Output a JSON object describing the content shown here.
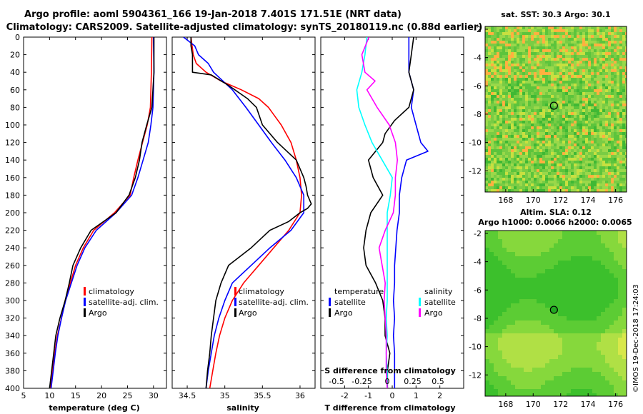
{
  "header": {
    "line1": "Argo profile: aoml 5904361_166 19-Jan-2018 7.401S 171.51E (NRT data)",
    "line2": "Climatology: CARS2009. Satellite-adjusted climatology: synTS_20180119.nc (0.88d earlier)"
  },
  "colors": {
    "climatology": "#ff0000",
    "satellite": "#0000ff",
    "argo": "#000000",
    "sal_diff": "#ff00ff",
    "sal_sat_diff": "#00ffff",
    "sst_bg": "#7ad84a",
    "sla_bg": "#33cc33"
  },
  "depth_ticks": [
    "0",
    "20",
    "40",
    "60",
    "80",
    "100",
    "120",
    "140",
    "160",
    "180",
    "200",
    "220",
    "240",
    "260",
    "280",
    "300",
    "320",
    "340",
    "360",
    "380",
    "400"
  ],
  "chart_data": [
    {
      "type": "line",
      "name": "temperature",
      "xlabel": "temperature (deg C)",
      "xlim": [
        5,
        32.5
      ],
      "xticks": [
        5,
        10,
        15,
        20,
        25,
        30
      ],
      "xtick_labels": [
        "5",
        "10",
        "15",
        "20",
        "25",
        "30"
      ],
      "ylim": [
        0,
        400
      ],
      "legend": [
        "climatology",
        "satellite-adj. clim.",
        "Argo"
      ],
      "series": [
        {
          "name": "climatology",
          "color": "#ff0000",
          "depth": [
            0,
            40,
            80,
            100,
            120,
            140,
            160,
            180,
            200,
            220,
            240,
            260,
            280,
            300,
            320,
            340,
            360,
            380,
            400
          ],
          "values": [
            29.7,
            29.6,
            29.4,
            28.8,
            27.9,
            27.0,
            26.2,
            25.5,
            22.5,
            18.5,
            16.5,
            15.0,
            14.0,
            13.0,
            12.3,
            11.5,
            11.0,
            10.6,
            10.2
          ]
        },
        {
          "name": "satellite-adj. clim.",
          "color": "#0000ff",
          "depth": [
            0,
            40,
            80,
            100,
            120,
            140,
            160,
            180,
            200,
            220,
            240,
            260,
            280,
            300,
            320,
            340,
            360,
            380,
            400
          ],
          "values": [
            30.0,
            30.1,
            29.9,
            29.5,
            29.0,
            28.0,
            27.0,
            25.8,
            22.8,
            19.0,
            16.8,
            15.3,
            14.2,
            13.1,
            12.3,
            11.6,
            11.1,
            10.7,
            10.3
          ]
        },
        {
          "name": "Argo",
          "color": "#000000",
          "depth": [
            0,
            40,
            80,
            100,
            120,
            140,
            160,
            180,
            200,
            220,
            240,
            260,
            280,
            300,
            320,
            340,
            360,
            380,
            400
          ],
          "values": [
            30.1,
            30.1,
            29.7,
            28.7,
            27.8,
            27.3,
            26.5,
            25.3,
            22.8,
            18.0,
            16.0,
            14.5,
            13.8,
            13.0,
            12.0,
            11.2,
            10.8,
            10.4,
            10.0
          ]
        }
      ]
    },
    {
      "type": "line",
      "name": "salinity",
      "xlabel": "salinity",
      "xlim": [
        34.3,
        36.2
      ],
      "xticks": [
        34.5,
        35,
        35.5,
        36
      ],
      "xtick_labels": [
        "34.5",
        "35",
        "35.5",
        "36"
      ],
      "ylim": [
        0,
        400
      ],
      "legend": [
        "climatology",
        "satellite-adj. clim.",
        "Argo"
      ],
      "series": [
        {
          "name": "climatology",
          "color": "#ff0000",
          "depth": [
            0,
            20,
            30,
            40,
            50,
            60,
            70,
            80,
            100,
            120,
            140,
            160,
            180,
            200,
            220,
            240,
            260,
            280,
            300,
            320,
            340,
            360,
            380,
            400
          ],
          "values": [
            34.55,
            34.58,
            34.62,
            34.75,
            34.95,
            35.22,
            35.45,
            35.58,
            35.75,
            35.88,
            35.95,
            36.0,
            36.02,
            36.0,
            35.85,
            35.65,
            35.45,
            35.25,
            35.1,
            35.0,
            34.93,
            34.88,
            34.84,
            34.8
          ]
        },
        {
          "name": "satellite-adj. clim.",
          "color": "#0000ff",
          "depth": [
            0,
            10,
            20,
            30,
            40,
            60,
            80,
            100,
            120,
            140,
            160,
            180,
            200,
            220,
            240,
            260,
            280,
            300,
            320,
            340,
            360,
            380,
            400
          ],
          "values": [
            34.45,
            34.6,
            34.65,
            34.78,
            34.85,
            35.1,
            35.28,
            35.45,
            35.62,
            35.8,
            35.95,
            36.05,
            36.05,
            35.88,
            35.6,
            35.35,
            35.1,
            35.0,
            34.92,
            34.86,
            34.82,
            34.78,
            34.75
          ]
        },
        {
          "name": "Argo",
          "color": "#000000",
          "depth": [
            0,
            10,
            20,
            30,
            40,
            43,
            55,
            70,
            80,
            100,
            120,
            140,
            160,
            170,
            180,
            190,
            195,
            200,
            210,
            220,
            240,
            260,
            280,
            300,
            320,
            340,
            360,
            380,
            400
          ],
          "values": [
            34.55,
            34.55,
            34.57,
            34.57,
            34.57,
            34.82,
            35.05,
            35.3,
            35.42,
            35.5,
            35.7,
            35.95,
            36.05,
            36.08,
            36.1,
            36.15,
            36.1,
            36.0,
            35.85,
            35.6,
            35.35,
            35.05,
            34.95,
            34.88,
            34.85,
            34.82,
            34.8,
            34.77,
            34.75
          ]
        }
      ]
    },
    {
      "type": "line",
      "name": "differences",
      "xlabel": "T difference from climatology",
      "xlabel_top": "S difference from climatology",
      "xlim": [
        -3,
        3
      ],
      "xticks": [
        -2,
        -1,
        0,
        1,
        2
      ],
      "xtick_labels": [
        "-2",
        "-1",
        "0",
        "1",
        "2"
      ],
      "sal_xticks": [
        -0.5,
        -0.25,
        0,
        0.25,
        0.5
      ],
      "sal_xtick_labels": [
        "-0.5",
        "-0.25",
        "0",
        "0.25",
        "0.5"
      ],
      "ylim": [
        0,
        400
      ],
      "legend_temperature_title": "temperature",
      "legend_salinity_title": "salinity",
      "legend": [
        "satellite",
        "Argo",
        "satellite",
        "Argo"
      ],
      "series": [
        {
          "name": "temperature satellite",
          "color": "#0000ff",
          "depth": [
            0,
            40,
            60,
            80,
            100,
            120,
            130,
            140,
            160,
            180,
            200,
            220,
            240,
            260,
            280,
            300,
            320,
            340,
            360,
            380,
            400
          ],
          "values": [
            0.7,
            0.7,
            0.9,
            0.8,
            1.0,
            1.2,
            1.5,
            0.6,
            0.4,
            0.3,
            0.3,
            0.2,
            0.15,
            0.1,
            0.1,
            0.05,
            0.1,
            0.05,
            0.1,
            0.1,
            0.1
          ]
        },
        {
          "name": "temperature Argo",
          "color": "#000000",
          "depth": [
            0,
            20,
            40,
            60,
            80,
            95,
            110,
            120,
            140,
            160,
            180,
            200,
            220,
            240,
            260,
            280,
            300,
            320,
            340,
            360,
            380,
            400
          ],
          "values": [
            0.9,
            0.8,
            0.7,
            0.9,
            0.7,
            0.1,
            -0.3,
            -0.4,
            -1.0,
            -0.8,
            -0.4,
            -0.9,
            -1.1,
            -1.2,
            -1.1,
            -0.7,
            -0.4,
            -0.3,
            -0.3,
            -0.1,
            -0.2,
            -0.2
          ]
        },
        {
          "name": "salinity satellite",
          "color": "#00ffff",
          "depth": [
            0,
            20,
            40,
            60,
            80,
            100,
            120,
            140,
            160,
            180,
            200,
            220,
            240,
            260,
            280,
            300,
            320,
            340,
            360,
            380,
            400
          ],
          "values": [
            -0.2,
            -0.22,
            -0.25,
            -0.3,
            -0.28,
            -0.22,
            -0.15,
            -0.05,
            0.05,
            0.03,
            0.0,
            0.0,
            0.0,
            0.0,
            0.0,
            0.0,
            -0.01,
            0.0,
            -0.01,
            0.0,
            0.0
          ]
        },
        {
          "name": "salinity Argo",
          "color": "#ff00ff",
          "depth": [
            0,
            20,
            40,
            50,
            60,
            80,
            100,
            120,
            140,
            160,
            180,
            200,
            220,
            240,
            260,
            280,
            300,
            320,
            340,
            360,
            380,
            400
          ],
          "values": [
            -0.18,
            -0.25,
            -0.22,
            -0.12,
            -0.2,
            -0.1,
            0.02,
            0.08,
            0.1,
            0.08,
            0.08,
            0.06,
            -0.02,
            -0.08,
            -0.05,
            -0.02,
            -0.03,
            -0.02,
            -0.01,
            -0.01,
            -0.01,
            0.0
          ]
        }
      ]
    },
    {
      "type": "heatmap",
      "name": "sst_map",
      "title": "sat. SST: 30.3 Argo: 30.1",
      "xlim": [
        166.5,
        176.8
      ],
      "ylim": [
        -13.5,
        -1.8
      ],
      "xticks": [
        168,
        170,
        172,
        174,
        176
      ],
      "yticks": [
        -2,
        -4,
        -6,
        -8,
        -10,
        -12
      ],
      "xtick_labels": [
        "168",
        "170",
        "172",
        "174",
        "176"
      ],
      "ytick_labels": [
        "-2",
        "-4",
        "-6",
        "-8",
        "-10",
        "-12"
      ],
      "argo_position": [
        171.51,
        -7.401
      ]
    },
    {
      "type": "heatmap",
      "name": "sla_map",
      "title": "Altim. SLA: 0.12",
      "subtitle": "Argo h1000: 0.0066 h2000: 0.0065",
      "xlim": [
        166.5,
        176.8
      ],
      "ylim": [
        -13.5,
        -1.8
      ],
      "xticks": [
        168,
        170,
        172,
        174,
        176
      ],
      "yticks": [
        -2,
        -4,
        -6,
        -8,
        -10,
        -12
      ],
      "xtick_labels": [
        "168",
        "170",
        "172",
        "174",
        "176"
      ],
      "ytick_labels": [
        "-2",
        "-4",
        "-6",
        "-8",
        "-10",
        "-12"
      ],
      "argo_position": [
        171.51,
        -7.401
      ]
    }
  ],
  "stamp": "©IMOS 19-Dec-2018 17:24:03"
}
